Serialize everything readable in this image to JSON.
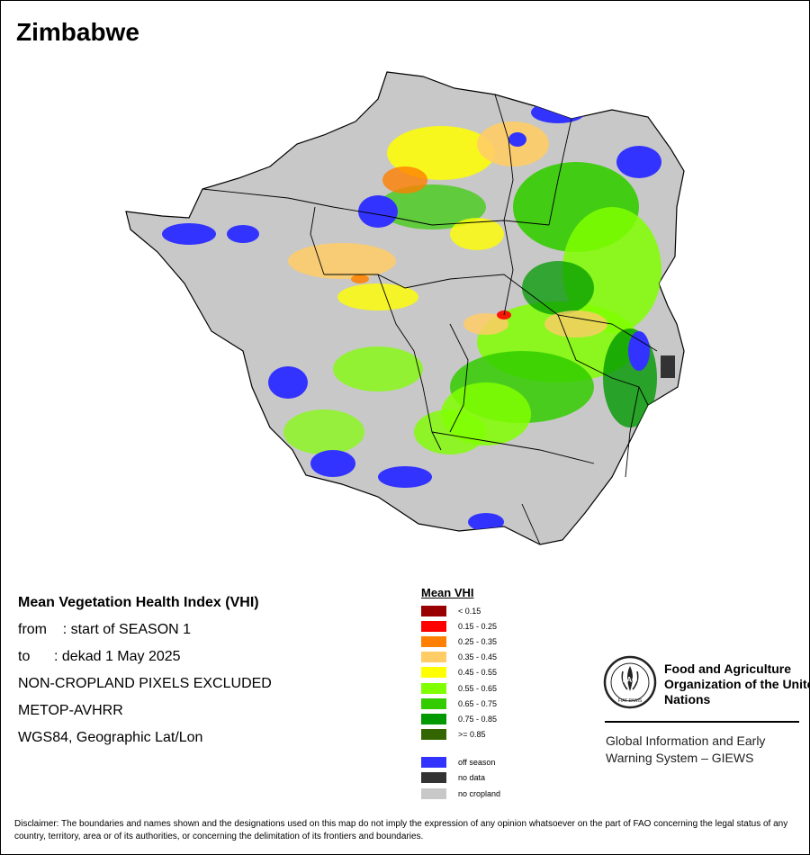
{
  "map": {
    "title": "Zimbabwe"
  },
  "info": {
    "heading": "Mean Vegetation Health Index (VHI)",
    "from_label": "from",
    "from_value": ": start of SEASON 1",
    "to_label": "to",
    "to_value": ": dekad 1 May 2025",
    "note": "NON-CROPLAND PIXELS EXCLUDED",
    "sensor": "METOP-AVHRR",
    "projection": "WGS84, Geographic Lat/Lon"
  },
  "legend": {
    "title": "Mean VHI",
    "classes": [
      {
        "label": "< 0.15",
        "color": "#990000"
      },
      {
        "label": "0.15 - 0.25",
        "color": "#ff0000"
      },
      {
        "label": "0.25 - 0.35",
        "color": "#ff8000"
      },
      {
        "label": "0.35 - 0.45",
        "color": "#ffcc66"
      },
      {
        "label": "0.45 - 0.55",
        "color": "#ffff00"
      },
      {
        "label": "0.55 - 0.65",
        "color": "#80ff00"
      },
      {
        "label": "0.65 - 0.75",
        "color": "#33cc00"
      },
      {
        "label": "0.75 - 0.85",
        "color": "#009900"
      },
      {
        "label": ">= 0.85",
        "color": "#336600"
      }
    ],
    "extra": [
      {
        "label": "off season",
        "color": "#3333ff"
      },
      {
        "label": "no data",
        "color": "#333333"
      },
      {
        "label": "no cropland",
        "color": "#c8c8c8"
      }
    ]
  },
  "logo": {
    "fao_name": "Food and Agriculture Organization of the United Nations",
    "giews": "Global Information and Early Warning System – GIEWS",
    "fao_letters": "FAO",
    "motto": "FIAT PANIS"
  },
  "disclaimer": "Disclaimer: The boundaries and names shown and the designations used on this map do not imply the expression of any opinion whatsoever on the part of FAO concerning the legal status of any country, territory, area or of its authorities, or concerning the delimitation of its frontiers and boundaries."
}
